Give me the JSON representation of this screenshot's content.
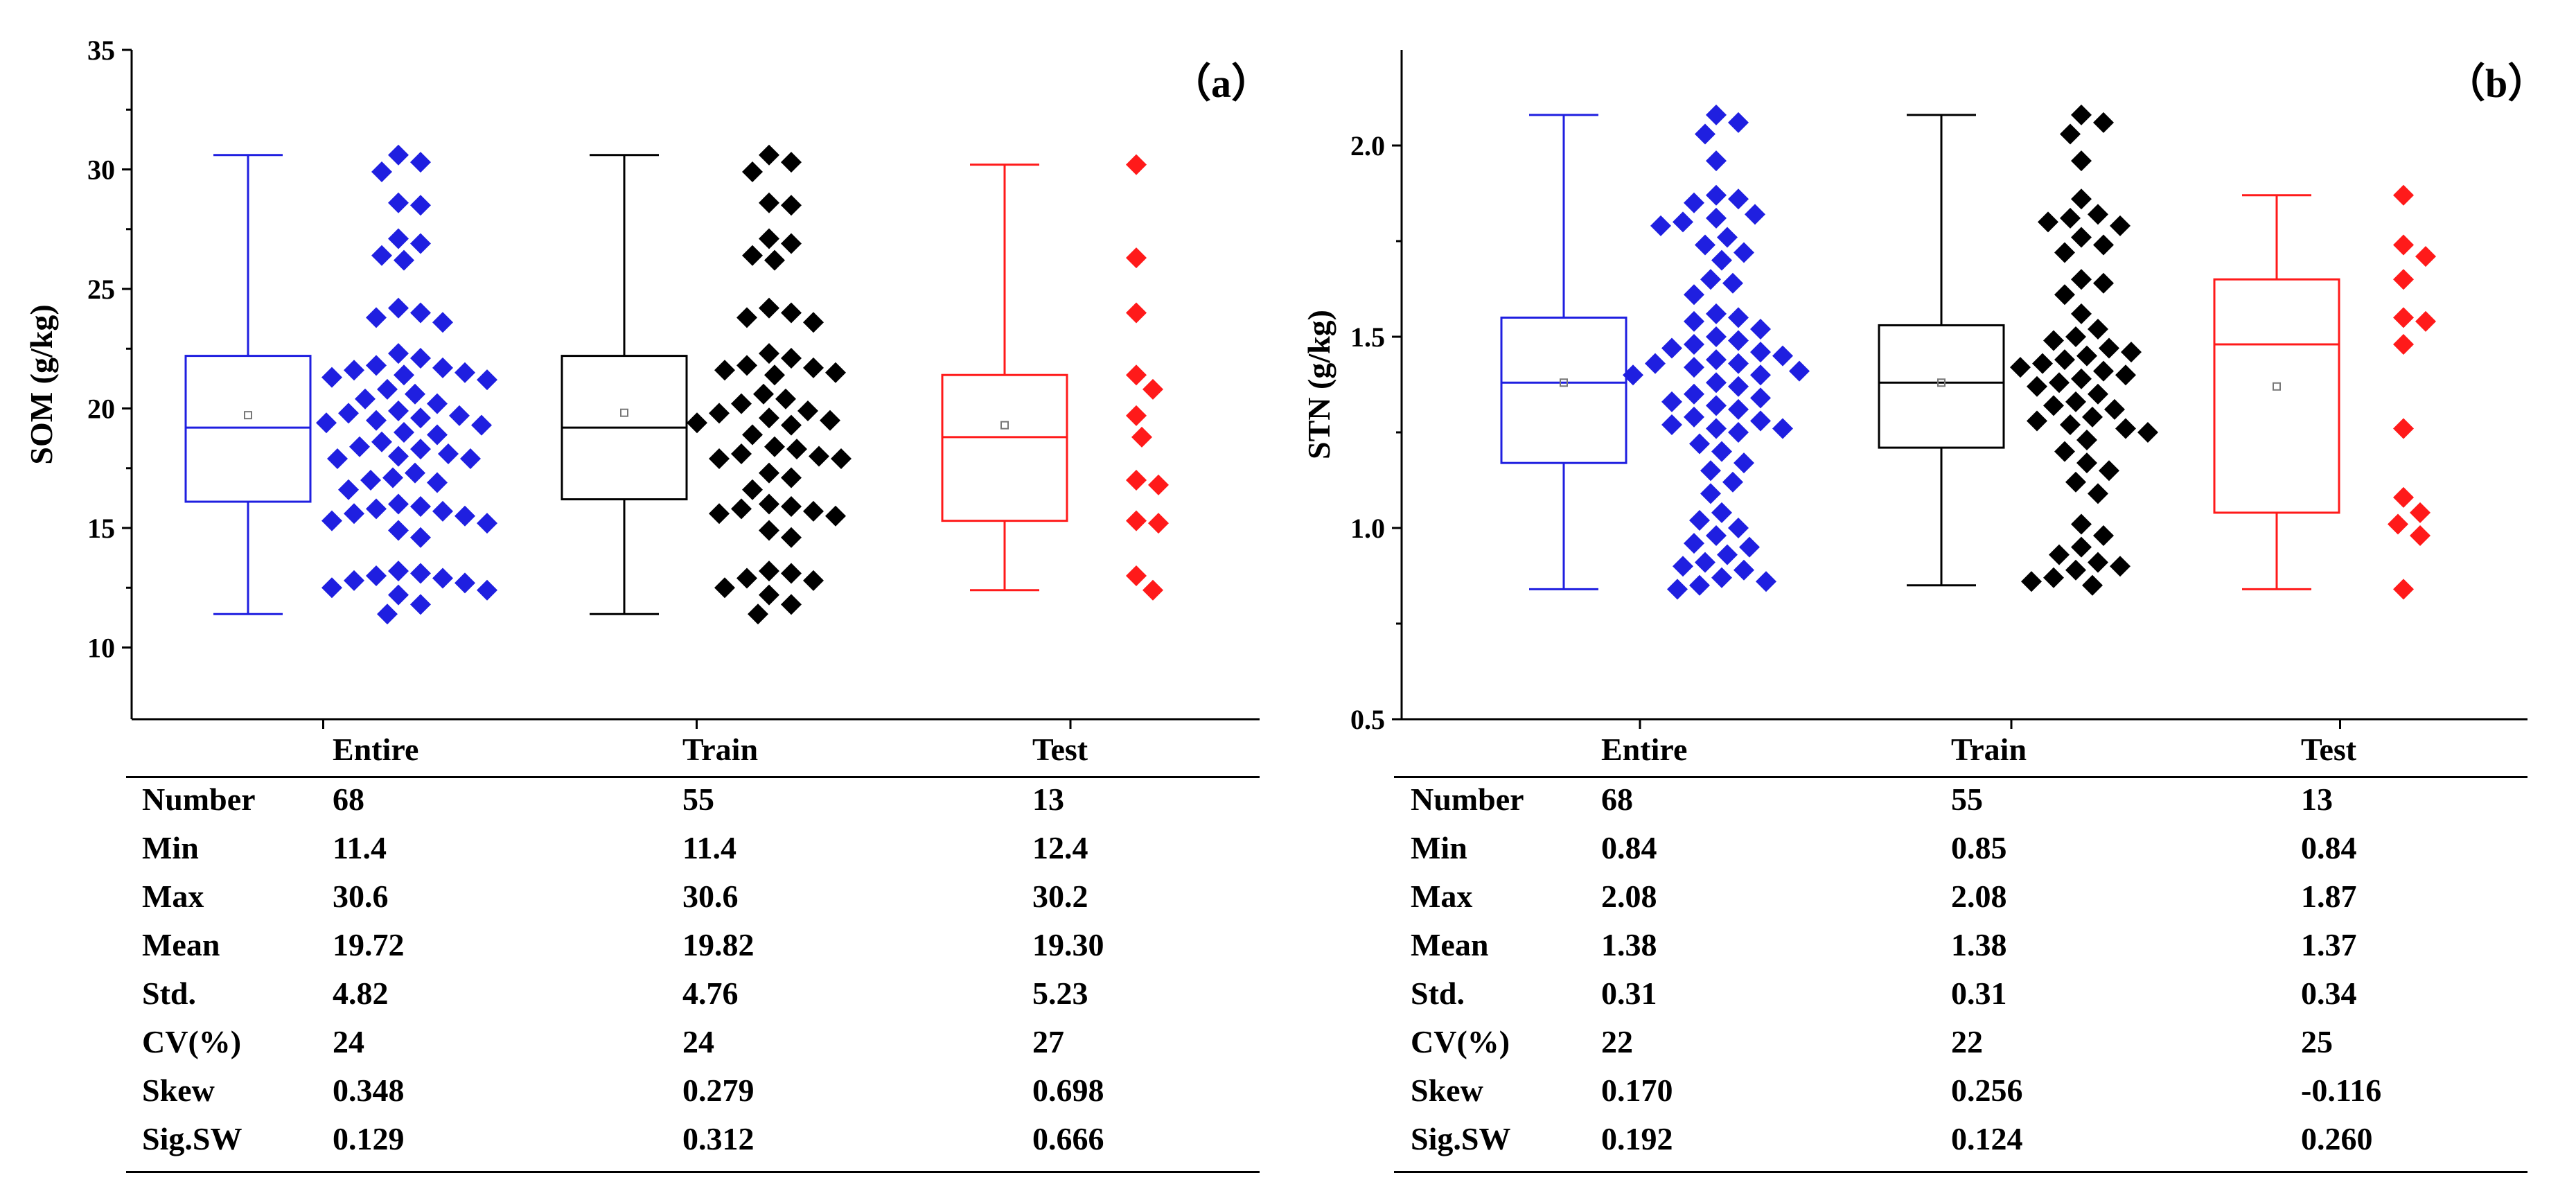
{
  "panels": [
    {
      "label": "（a）",
      "ylabel": "SOM (g/kg)",
      "ylim": [
        7,
        35
      ],
      "ticks": [
        10,
        15,
        20,
        25,
        30,
        35
      ],
      "tick_labels": [
        "10",
        "15",
        "20",
        "25",
        "30",
        "35"
      ],
      "groups": [
        {
          "name": "Entire",
          "color": "#1f1fe0",
          "points": [
            30.6,
            30.3,
            29.9,
            28.6,
            28.5,
            27.1,
            26.9,
            26.4,
            26.2,
            24.2,
            24.0,
            23.8,
            23.6,
            22.3,
            22.1,
            21.8,
            21.7,
            21.6,
            21.5,
            21.4,
            21.3,
            21.2,
            20.8,
            20.6,
            20.4,
            20.2,
            19.9,
            19.8,
            19.7,
            19.6,
            19.5,
            19.4,
            19.3,
            19.0,
            18.9,
            18.6,
            18.4,
            18.3,
            18.1,
            18.0,
            17.9,
            17.9,
            17.3,
            17.1,
            17.0,
            16.9,
            16.6,
            16.0,
            15.9,
            15.8,
            15.7,
            15.6,
            15.5,
            15.3,
            15.2,
            14.9,
            14.6,
            13.2,
            13.1,
            13.0,
            12.9,
            12.8,
            12.7,
            12.5,
            12.4,
            12.2,
            11.8,
            11.4
          ]
        },
        {
          "name": "Train",
          "color": "#000000",
          "points": [
            30.6,
            30.3,
            29.9,
            28.6,
            28.5,
            27.1,
            26.9,
            26.4,
            26.2,
            24.2,
            24.0,
            23.8,
            23.6,
            22.3,
            22.1,
            21.8,
            21.7,
            21.6,
            21.5,
            21.4,
            20.6,
            20.4,
            20.2,
            19.9,
            19.8,
            19.6,
            19.5,
            19.4,
            19.3,
            18.9,
            18.4,
            18.3,
            18.1,
            18.0,
            17.9,
            17.9,
            17.3,
            17.1,
            16.6,
            16.0,
            15.9,
            15.8,
            15.7,
            15.6,
            15.5,
            14.9,
            14.6,
            13.2,
            13.1,
            12.9,
            12.8,
            12.5,
            12.2,
            11.8,
            11.4
          ]
        },
        {
          "name": "Test",
          "color": "#ff1a1a",
          "points": [
            30.2,
            26.3,
            24.0,
            21.4,
            20.8,
            19.7,
            18.8,
            17.0,
            16.8,
            15.3,
            15.2,
            13.0,
            12.4
          ]
        }
      ],
      "boxes": [
        {
          "q1": 16.1,
          "median": 19.2,
          "q3": 22.2,
          "min": 11.4,
          "max": 30.6,
          "mean": 19.72
        },
        {
          "q1": 16.2,
          "median": 19.2,
          "q3": 22.2,
          "min": 11.4,
          "max": 30.6,
          "mean": 19.82
        },
        {
          "q1": 15.3,
          "median": 18.8,
          "q3": 21.4,
          "min": 12.4,
          "max": 30.2,
          "mean": 19.3
        }
      ],
      "table": {
        "columns": [
          "Entire",
          "Train",
          "Test"
        ],
        "rows": [
          {
            "label": "Number",
            "values": [
              "68",
              "55",
              "13"
            ]
          },
          {
            "label": "Min",
            "values": [
              "11.4",
              "11.4",
              "12.4"
            ]
          },
          {
            "label": "Max",
            "values": [
              "30.6",
              "30.6",
              "30.2"
            ]
          },
          {
            "label": "Mean",
            "values": [
              "19.72",
              "19.82",
              "19.30"
            ]
          },
          {
            "label": "Std.",
            "values": [
              "4.82",
              "4.76",
              "5.23"
            ]
          },
          {
            "label": "CV(%)",
            "values": [
              "24",
              "24",
              "27"
            ]
          },
          {
            "label": "Skew",
            "values": [
              "0.348",
              "0.279",
              "0.698"
            ]
          },
          {
            "label": "Sig.SW",
            "values": [
              "0.129",
              "0.312",
              "0.666"
            ]
          }
        ]
      }
    },
    {
      "label": "（b）",
      "ylabel": "STN (g/kg)",
      "ylim": [
        0.5,
        2.25
      ],
      "ticks": [
        0.5,
        1.0,
        1.5,
        2.0
      ],
      "tick_labels": [
        "0.5",
        "1.0",
        "1.5",
        "2.0"
      ],
      "groups": [
        {
          "name": "Entire",
          "color": "#1f1fe0",
          "points": [
            2.08,
            2.06,
            2.03,
            1.96,
            1.87,
            1.86,
            1.85,
            1.82,
            1.81,
            1.8,
            1.79,
            1.76,
            1.74,
            1.72,
            1.7,
            1.65,
            1.64,
            1.61,
            1.56,
            1.55,
            1.54,
            1.52,
            1.5,
            1.49,
            1.48,
            1.47,
            1.46,
            1.45,
            1.44,
            1.43,
            1.43,
            1.42,
            1.41,
            1.4,
            1.4,
            1.38,
            1.37,
            1.35,
            1.34,
            1.33,
            1.32,
            1.31,
            1.29,
            1.28,
            1.27,
            1.26,
            1.26,
            1.25,
            1.22,
            1.2,
            1.17,
            1.15,
            1.12,
            1.09,
            1.04,
            1.02,
            1.0,
            0.98,
            0.96,
            0.95,
            0.93,
            0.91,
            0.9,
            0.89,
            0.87,
            0.86,
            0.85,
            0.84
          ]
        },
        {
          "name": "Train",
          "color": "#000000",
          "points": [
            2.08,
            2.06,
            2.03,
            1.96,
            1.86,
            1.82,
            1.81,
            1.8,
            1.79,
            1.76,
            1.74,
            1.72,
            1.65,
            1.64,
            1.61,
            1.56,
            1.52,
            1.5,
            1.49,
            1.47,
            1.46,
            1.45,
            1.44,
            1.43,
            1.42,
            1.41,
            1.4,
            1.39,
            1.38,
            1.37,
            1.35,
            1.33,
            1.32,
            1.31,
            1.29,
            1.28,
            1.27,
            1.26,
            1.25,
            1.23,
            1.2,
            1.17,
            1.15,
            1.12,
            1.09,
            1.01,
            0.98,
            0.95,
            0.93,
            0.91,
            0.9,
            0.89,
            0.87,
            0.86,
            0.85
          ]
        },
        {
          "name": "Test",
          "color": "#ff1a1a",
          "points": [
            1.87,
            1.74,
            1.71,
            1.65,
            1.55,
            1.54,
            1.48,
            1.26,
            1.08,
            1.04,
            1.01,
            0.98,
            0.84
          ]
        }
      ],
      "boxes": [
        {
          "q1": 1.17,
          "median": 1.38,
          "q3": 1.55,
          "min": 0.84,
          "max": 2.08,
          "mean": 1.38
        },
        {
          "q1": 1.21,
          "median": 1.38,
          "q3": 1.53,
          "min": 0.85,
          "max": 2.08,
          "mean": 1.38
        },
        {
          "q1": 1.04,
          "median": 1.48,
          "q3": 1.65,
          "min": 0.84,
          "max": 1.87,
          "mean": 1.37
        }
      ],
      "table": {
        "columns": [
          "Entire",
          "Train",
          "Test"
        ],
        "rows": [
          {
            "label": "Number",
            "values": [
              "68",
              "55",
              "13"
            ]
          },
          {
            "label": "Min",
            "values": [
              "0.84",
              "0.85",
              "0.84"
            ]
          },
          {
            "label": "Max",
            "values": [
              "2.08",
              "2.08",
              "1.87"
            ]
          },
          {
            "label": "Mean",
            "values": [
              "1.38",
              "1.38",
              "1.37"
            ]
          },
          {
            "label": "Std.",
            "values": [
              "0.31",
              "0.31",
              "0.34"
            ]
          },
          {
            "label": "CV(%)",
            "values": [
              "22",
              "22",
              "25"
            ]
          },
          {
            "label": "Skew",
            "values": [
              "0.170",
              "0.256",
              "-0.116"
            ]
          },
          {
            "label": "Sig.SW",
            "values": [
              "0.192",
              "0.124",
              "0.260"
            ]
          }
        ]
      }
    }
  ],
  "chart_data": [
    {
      "type": "box",
      "title": "（a）",
      "ylabel": "SOM (g/kg)",
      "xlabel": "",
      "ylim": [
        7,
        35
      ],
      "categories": [
        "Entire",
        "Train",
        "Test"
      ],
      "series": [
        {
          "name": "Entire",
          "min": 11.4,
          "q1": 16.1,
          "median": 19.2,
          "q3": 22.2,
          "max": 30.6,
          "mean": 19.72,
          "n": 68
        },
        {
          "name": "Train",
          "min": 11.4,
          "q1": 16.2,
          "median": 19.2,
          "q3": 22.2,
          "max": 30.6,
          "mean": 19.82,
          "n": 55
        },
        {
          "name": "Test",
          "min": 12.4,
          "q1": 15.3,
          "median": 18.8,
          "q3": 21.4,
          "max": 30.2,
          "mean": 19.3,
          "n": 13
        }
      ]
    },
    {
      "type": "box",
      "title": "（b）",
      "ylabel": "STN (g/kg)",
      "xlabel": "",
      "ylim": [
        0.5,
        2.25
      ],
      "categories": [
        "Entire",
        "Train",
        "Test"
      ],
      "series": [
        {
          "name": "Entire",
          "min": 0.84,
          "q1": 1.17,
          "median": 1.38,
          "q3": 1.55,
          "max": 2.08,
          "mean": 1.38,
          "n": 68
        },
        {
          "name": "Train",
          "min": 0.85,
          "q1": 1.21,
          "median": 1.38,
          "q3": 1.53,
          "max": 2.08,
          "mean": 1.38,
          "n": 55
        },
        {
          "name": "Test",
          "min": 0.84,
          "q1": 1.04,
          "median": 1.48,
          "q3": 1.65,
          "max": 1.87,
          "mean": 1.37,
          "n": 13
        }
      ]
    }
  ]
}
